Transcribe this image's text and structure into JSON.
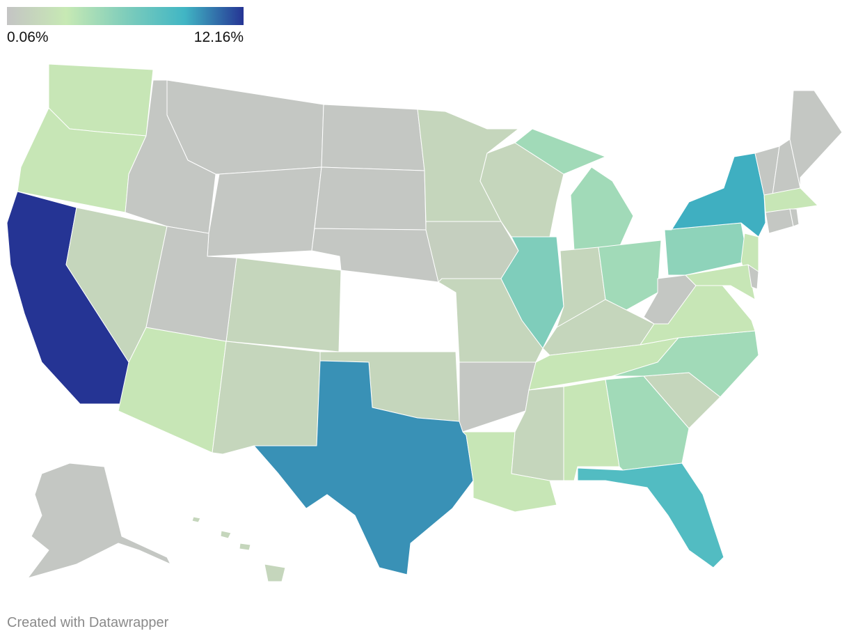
{
  "chart_data": {
    "type": "choropleth",
    "colors": [
      "#c4c4c4",
      "#c7e9b4",
      "#7fcdbb",
      "#41b6c4",
      "#253494"
    ],
    "ticks": [
      {
        "value": 0.06,
        "label": "0.06%"
      },
      {
        "value": 12.16,
        "label": "12.16%"
      }
    ],
    "values": [
      2.8,
      2.8,
      12.16,
      1.5,
      0.3,
      0.3,
      0.3,
      2.8,
      1.5,
      1.5,
      0.3,
      0.3,
      0.3,
      0.3,
      1.5,
      10.0,
      1.5,
      1.0,
      1.5,
      0.3,
      2.8,
      1.5,
      6.1,
      4.7,
      1.5,
      4.7,
      1.5,
      2.8,
      1.5,
      2.8,
      4.7,
      8.3,
      1.5,
      4.7,
      2.8,
      0.3,
      5.5,
      9.3,
      2.8,
      2.8,
      0.3,
      0.3,
      0.3,
      0.3,
      2.8,
      0.3,
      0.3,
      0.3,
      1.5
    ],
    "note": "Created with Datawrapper"
  }
}
